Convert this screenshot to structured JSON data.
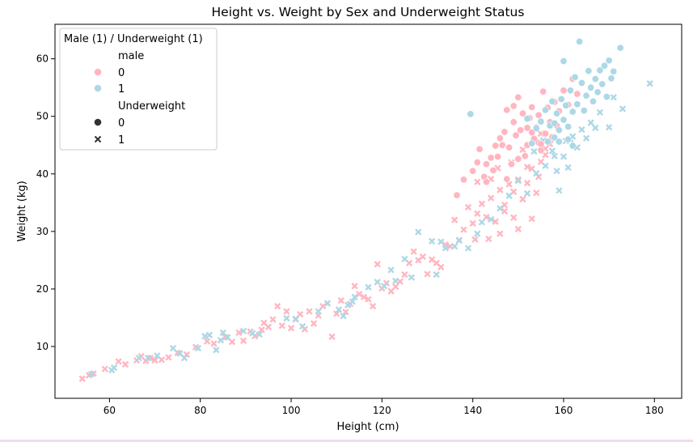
{
  "chart_data": {
    "type": "scatter",
    "title": "Height vs. Weight by Sex and Underweight Status",
    "xlabel": "Height (cm)",
    "ylabel": "Weight (kg)",
    "xlim": [
      48,
      186
    ],
    "ylim": [
      1,
      66
    ],
    "xticks": [
      60,
      80,
      100,
      120,
      140,
      160,
      180
    ],
    "yticks": [
      10,
      20,
      30,
      40,
      50,
      60
    ],
    "grid": false,
    "legend": {
      "placement": "top-left",
      "title": "Male (1) / Underweight (1)",
      "hue_title": "male",
      "hue_entries": [
        "0",
        "1"
      ],
      "style_title": "Underweight",
      "style_entries": [
        "0",
        "1"
      ]
    },
    "colors": {
      "female": "#ffb6c1",
      "male": "#add8e6"
    },
    "markers": {
      "0": "circle",
      "1": "x"
    },
    "series": [
      {
        "male": 0,
        "underweight": 1,
        "points": [
          [
            54,
            4.4
          ],
          [
            55.5,
            5.0
          ],
          [
            56.5,
            5.3
          ],
          [
            59,
            6.1
          ],
          [
            62,
            7.4
          ],
          [
            63.5,
            6.9
          ],
          [
            66,
            7.6
          ],
          [
            67,
            8.3
          ],
          [
            68,
            7.5
          ],
          [
            69,
            8.0
          ],
          [
            70,
            7.6
          ],
          [
            71.5,
            7.7
          ],
          [
            73,
            8.1
          ],
          [
            75,
            8.9
          ],
          [
            77,
            8.6
          ],
          [
            79,
            9.9
          ],
          [
            81.5,
            10.9
          ],
          [
            83,
            10.5
          ],
          [
            85.5,
            11.6
          ],
          [
            87,
            10.8
          ],
          [
            88.5,
            12.4
          ],
          [
            89.5,
            11.0
          ],
          [
            91,
            12.6
          ],
          [
            92,
            11.8
          ],
          [
            93.5,
            12.9
          ],
          [
            94,
            14.1
          ],
          [
            95,
            13.4
          ],
          [
            96,
            14.7
          ],
          [
            97,
            17.0
          ],
          [
            98,
            13.6
          ],
          [
            99,
            16.1
          ],
          [
            100,
            13.2
          ],
          [
            101,
            14.7
          ],
          [
            102,
            15.6
          ],
          [
            103,
            13.0
          ],
          [
            104,
            16.1
          ],
          [
            105,
            14.0
          ],
          [
            106,
            15.4
          ],
          [
            107,
            17.0
          ],
          [
            108,
            17.5
          ],
          [
            109,
            11.7
          ],
          [
            110,
            15.7
          ],
          [
            111,
            18.0
          ],
          [
            112,
            16.0
          ],
          [
            113,
            17.4
          ],
          [
            114,
            20.5
          ],
          [
            115,
            19.1
          ],
          [
            116,
            18.6
          ],
          [
            117,
            18.2
          ],
          [
            118,
            17.0
          ],
          [
            119,
            24.3
          ],
          [
            120,
            20.1
          ],
          [
            121,
            21.0
          ],
          [
            122,
            19.6
          ],
          [
            123,
            20.4
          ],
          [
            124,
            21.3
          ],
          [
            125,
            22.5
          ],
          [
            126,
            24.5
          ],
          [
            127,
            26.5
          ],
          [
            128,
            25.0
          ],
          [
            129,
            25.6
          ],
          [
            130,
            22.6
          ],
          [
            131,
            25.1
          ],
          [
            132,
            24.5
          ],
          [
            133,
            23.8
          ],
          [
            134,
            27.7
          ],
          [
            135,
            27.4
          ],
          [
            136,
            32.0
          ],
          [
            137,
            28.5
          ],
          [
            138,
            30.3
          ],
          [
            139,
            34.2
          ],
          [
            140,
            31.4
          ],
          [
            141,
            33.1
          ],
          [
            142,
            34.8
          ],
          [
            143,
            32.5
          ],
          [
            144,
            35.8
          ],
          [
            145,
            31.7
          ],
          [
            146,
            37.2
          ],
          [
            147,
            33.5
          ],
          [
            148,
            38.2
          ],
          [
            149,
            36.9
          ],
          [
            150,
            39.0
          ],
          [
            151,
            35.6
          ],
          [
            152,
            38.4
          ],
          [
            153,
            40.9
          ],
          [
            154,
            36.7
          ],
          [
            155,
            42.1
          ],
          [
            156,
            44.4
          ],
          [
            140.5,
            28.6
          ],
          [
            143.5,
            28.7
          ],
          [
            146,
            29.6
          ],
          [
            150,
            30.4
          ],
          [
            153,
            32.2
          ],
          [
            147,
            34.6
          ],
          [
            149,
            32.4
          ],
          [
            152,
            41.2
          ],
          [
            154.5,
            39.5
          ],
          [
            156,
            43.3
          ],
          [
            157,
            45.2
          ],
          [
            158,
            46.1
          ],
          [
            141,
            38.6
          ],
          [
            144,
            39.1
          ],
          [
            145.5,
            41.0
          ],
          [
            148.5,
            42.0
          ],
          [
            151,
            44.2
          ],
          [
            155,
            47.0
          ]
        ]
      },
      {
        "male": 1,
        "underweight": 1,
        "points": [
          [
            56,
            5.2
          ],
          [
            60.5,
            5.9
          ],
          [
            61,
            6.3
          ],
          [
            66.5,
            8.0
          ],
          [
            68.5,
            8.0
          ],
          [
            70.5,
            8.4
          ],
          [
            74,
            9.7
          ],
          [
            75.5,
            8.8
          ],
          [
            76.5,
            8.0
          ],
          [
            79.5,
            9.7
          ],
          [
            81,
            11.8
          ],
          [
            82,
            12.0
          ],
          [
            83.5,
            9.4
          ],
          [
            84.5,
            11.1
          ],
          [
            85,
            12.4
          ],
          [
            86,
            11.6
          ],
          [
            89.5,
            12.7
          ],
          [
            91.5,
            12.3
          ],
          [
            93,
            12.1
          ],
          [
            99,
            14.9
          ],
          [
            101,
            14.8
          ],
          [
            102.5,
            13.5
          ],
          [
            106,
            16.1
          ],
          [
            108,
            17.5
          ],
          [
            110.5,
            16.4
          ],
          [
            111.5,
            15.3
          ],
          [
            112.5,
            17.2
          ],
          [
            113.5,
            17.8
          ],
          [
            114,
            18.6
          ],
          [
            117,
            20.3
          ],
          [
            119,
            21.2
          ],
          [
            120.5,
            20.5
          ],
          [
            122,
            23.3
          ],
          [
            123,
            21.4
          ],
          [
            125,
            25.2
          ],
          [
            126.5,
            22.0
          ],
          [
            128,
            29.9
          ],
          [
            131,
            28.3
          ],
          [
            132,
            22.5
          ],
          [
            133,
            28.2
          ],
          [
            134,
            27.1
          ],
          [
            136,
            27.4
          ],
          [
            137,
            28.4
          ],
          [
            139,
            27.1
          ],
          [
            141,
            29.6
          ],
          [
            142,
            31.6
          ],
          [
            144,
            32.1
          ],
          [
            146,
            34.0
          ],
          [
            148,
            36.2
          ],
          [
            150,
            38.8
          ],
          [
            152,
            36.6
          ],
          [
            154,
            40.1
          ],
          [
            156,
            41.4
          ],
          [
            158,
            43.1
          ],
          [
            159,
            37.1
          ],
          [
            160,
            43.0
          ],
          [
            161,
            41.1
          ],
          [
            162,
            46.5
          ],
          [
            163,
            44.6
          ],
          [
            164,
            47.7
          ],
          [
            165,
            46.2
          ],
          [
            166,
            48.9
          ],
          [
            167,
            48.0
          ],
          [
            168,
            50.7
          ],
          [
            170,
            48.1
          ],
          [
            171,
            53.3
          ],
          [
            173,
            51.3
          ],
          [
            179,
            55.7
          ],
          [
            160.5,
            45.7
          ],
          [
            157.5,
            44.0
          ],
          [
            155.5,
            45.8
          ],
          [
            153.5,
            43.9
          ],
          [
            158.5,
            40.5
          ],
          [
            161.5,
            46.0
          ]
        ]
      },
      {
        "male": 0,
        "underweight": 0,
        "points": [
          [
            136.5,
            36.3
          ],
          [
            138,
            39.0
          ],
          [
            140,
            40.5
          ],
          [
            141,
            42.0
          ],
          [
            141.5,
            44.3
          ],
          [
            143,
            41.7
          ],
          [
            144,
            42.8
          ],
          [
            145,
            44.9
          ],
          [
            146,
            46.2
          ],
          [
            147,
            47.3
          ],
          [
            147.5,
            51.1
          ],
          [
            148,
            44.6
          ],
          [
            149,
            49.0
          ],
          [
            149.5,
            46.7
          ],
          [
            150,
            53.3
          ],
          [
            150.5,
            47.6
          ],
          [
            151,
            50.5
          ],
          [
            152,
            45.0
          ],
          [
            152.5,
            49.7
          ],
          [
            153,
            51.6
          ],
          [
            153.5,
            46.1
          ],
          [
            154,
            48.1
          ],
          [
            154.5,
            50.2
          ],
          [
            155,
            44.1
          ],
          [
            155.5,
            54.3
          ],
          [
            156,
            47.0
          ],
          [
            156.5,
            51.5
          ],
          [
            157,
            49.0
          ],
          [
            158,
            52.5
          ],
          [
            158.5,
            48.4
          ],
          [
            159,
            50.9
          ],
          [
            160,
            54.5
          ],
          [
            161,
            52.0
          ],
          [
            162,
            56.5
          ],
          [
            163,
            53.9
          ],
          [
            142.5,
            39.5
          ],
          [
            145.5,
            43.0
          ],
          [
            148.5,
            41.7
          ],
          [
            151.5,
            43.1
          ],
          [
            154.5,
            45.4
          ],
          [
            147.5,
            39.1
          ],
          [
            150,
            42.6
          ],
          [
            152,
            48.0
          ],
          [
            149,
            51.8
          ],
          [
            146.5,
            45.0
          ],
          [
            143,
            38.6
          ],
          [
            155,
            45.2
          ],
          [
            157.5,
            46.4
          ],
          [
            153,
            47.2
          ],
          [
            144.5,
            40.6
          ]
        ]
      },
      {
        "male": 1,
        "underweight": 0,
        "points": [
          [
            139.5,
            50.4
          ],
          [
            152,
            49.6
          ],
          [
            153,
            45.3
          ],
          [
            154,
            47.9
          ],
          [
            155,
            49.1
          ],
          [
            156,
            51.1
          ],
          [
            156.5,
            45.6
          ],
          [
            157,
            48.4
          ],
          [
            157.5,
            52.6
          ],
          [
            158,
            46.3
          ],
          [
            158.5,
            50.5
          ],
          [
            159,
            47.6
          ],
          [
            159.5,
            53.0
          ],
          [
            160,
            49.4
          ],
          [
            160.5,
            51.9
          ],
          [
            161,
            48.2
          ],
          [
            161.5,
            54.5
          ],
          [
            162,
            50.8
          ],
          [
            162.5,
            56.8
          ],
          [
            163,
            52.1
          ],
          [
            163.5,
            63.0
          ],
          [
            164,
            55.8
          ],
          [
            164.5,
            51.0
          ],
          [
            165,
            53.6
          ],
          [
            165.5,
            57.9
          ],
          [
            166,
            55.0
          ],
          [
            166.5,
            52.6
          ],
          [
            167,
            56.5
          ],
          [
            167.5,
            54.2
          ],
          [
            168,
            58.0
          ],
          [
            168.5,
            55.6
          ],
          [
            169,
            58.8
          ],
          [
            169.5,
            53.4
          ],
          [
            170,
            59.7
          ],
          [
            170.5,
            56.6
          ],
          [
            171,
            57.8
          ],
          [
            172.5,
            61.9
          ],
          [
            160,
            59.6
          ],
          [
            158,
            48.8
          ],
          [
            161,
            46.0
          ],
          [
            162,
            44.9
          ],
          [
            159,
            45.6
          ]
        ]
      }
    ]
  }
}
